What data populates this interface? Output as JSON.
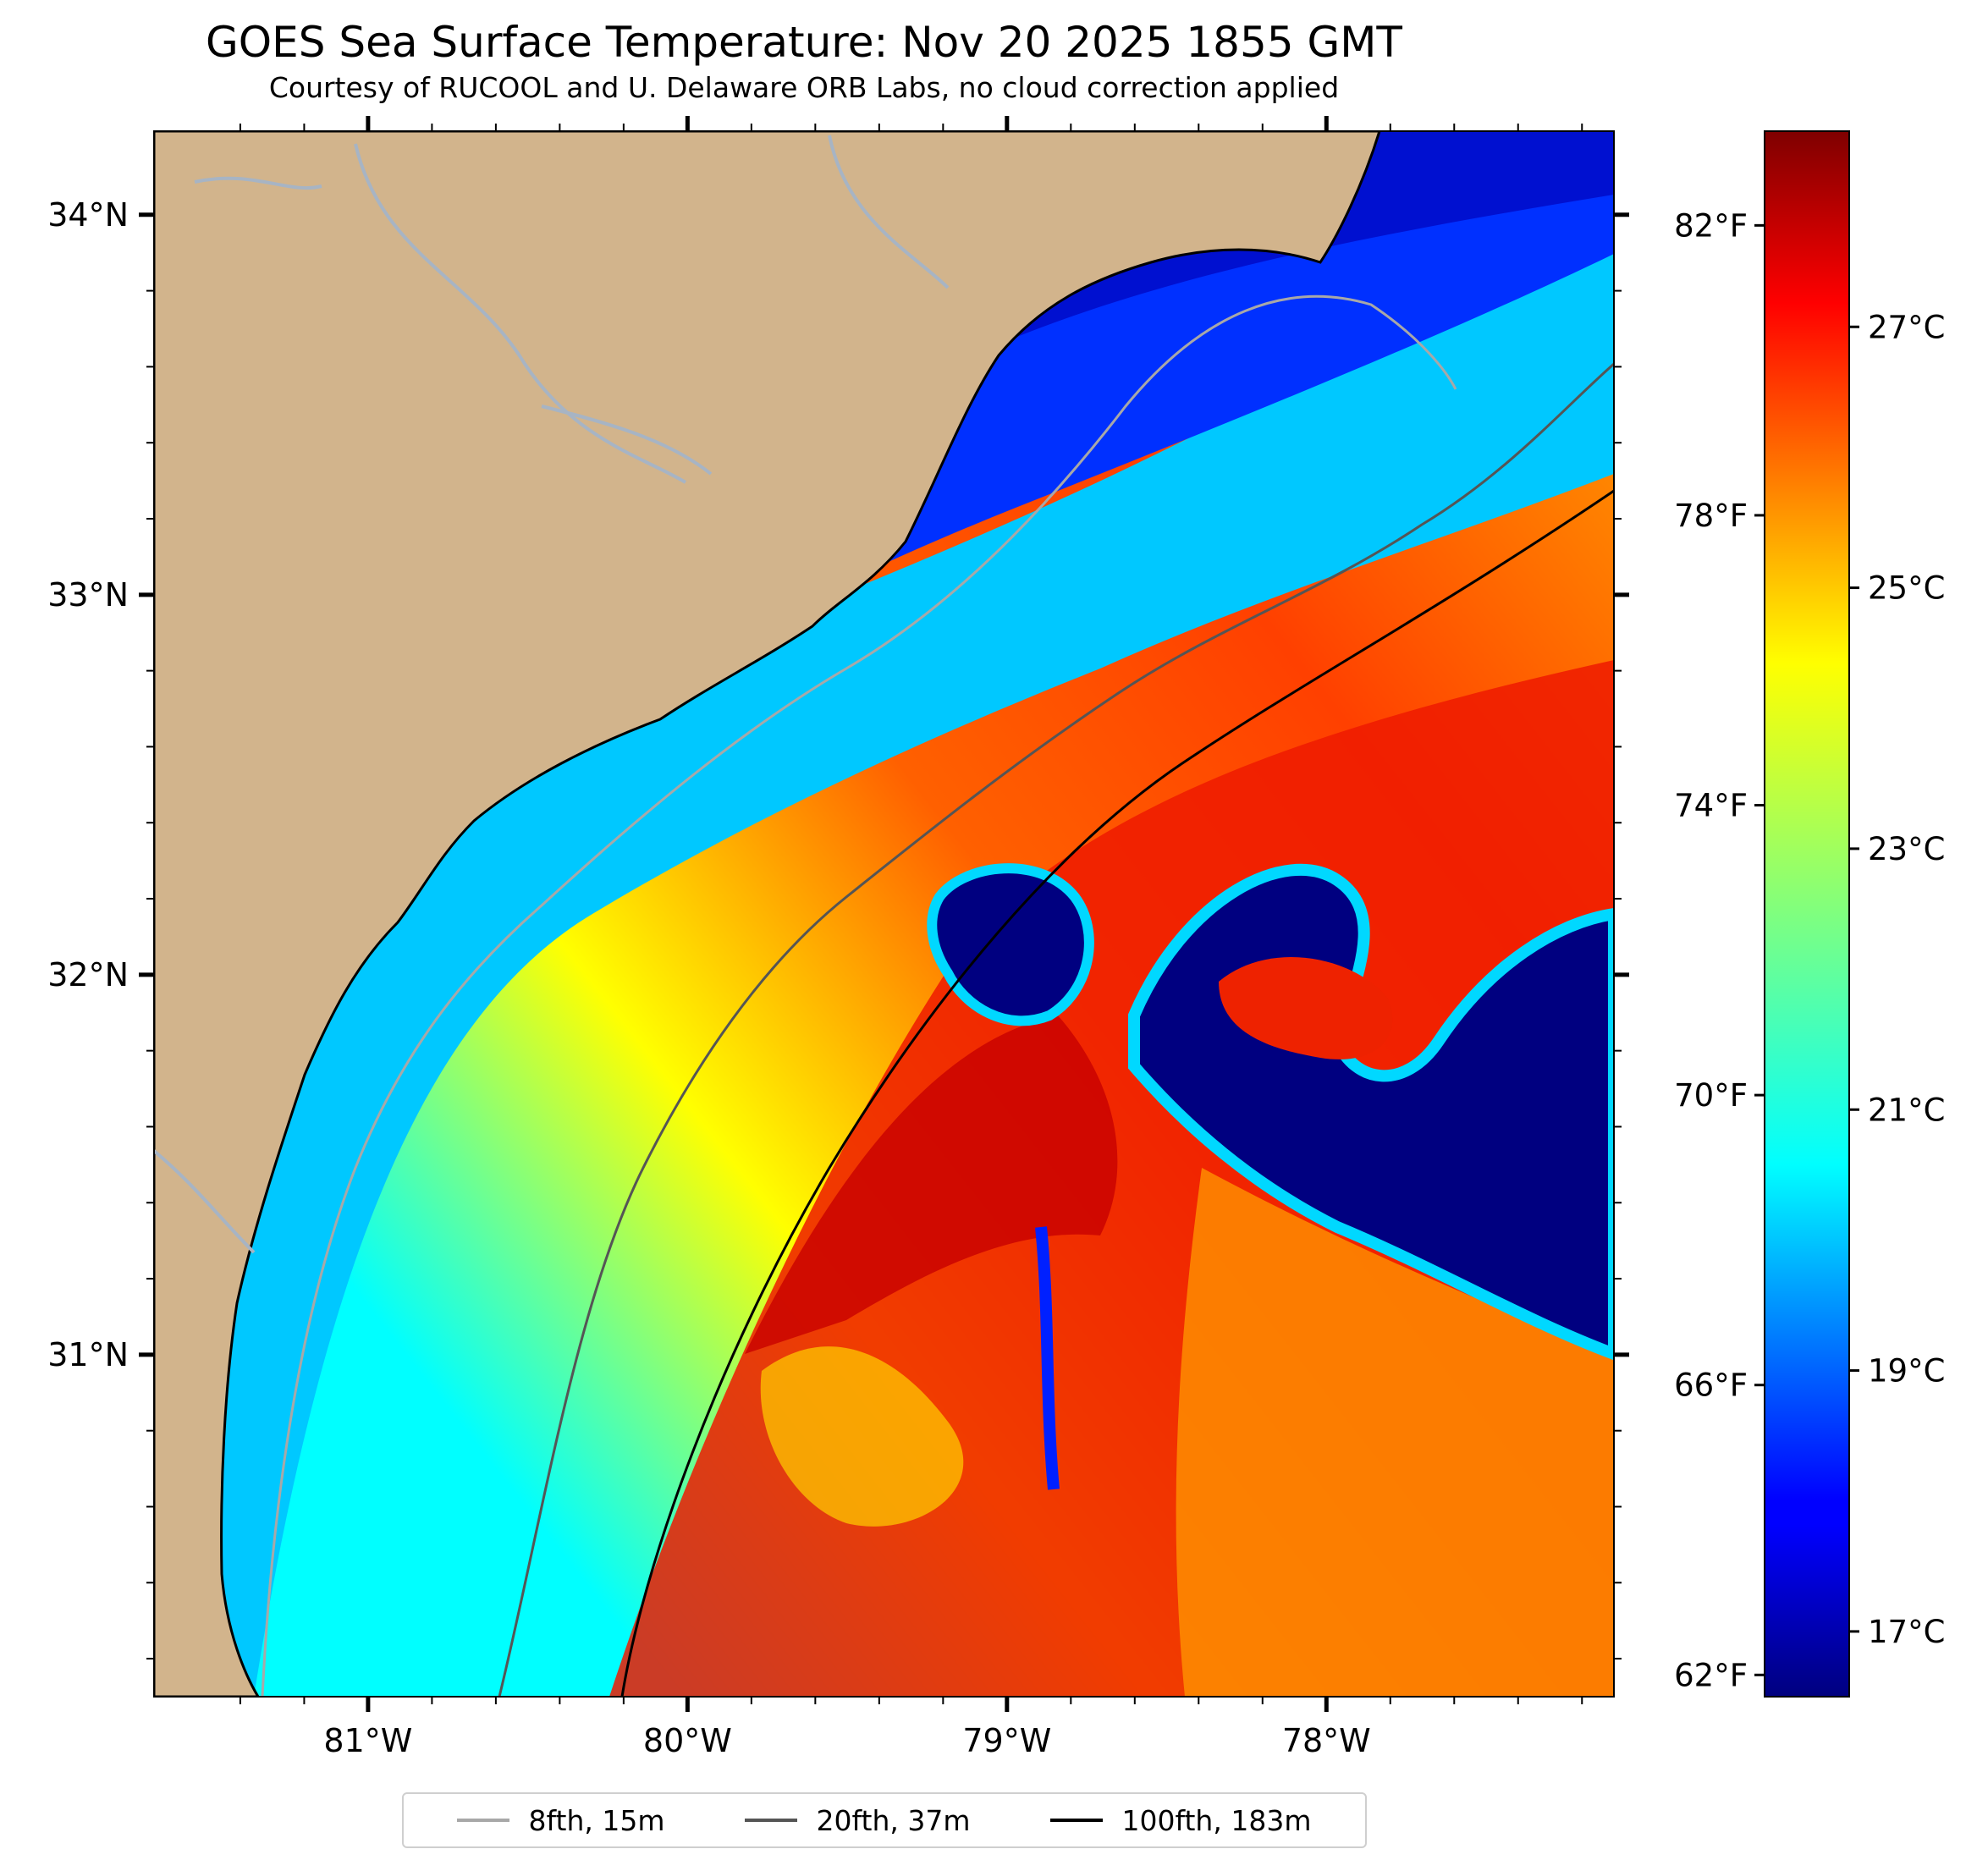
{
  "title": "GOES Sea Surface Temperature: Nov 20 2025 1855 GMT",
  "subtitle": "Courtesy of RUCOOL and U. Delaware ORB Labs, no cloud correction applied",
  "map": {
    "lon_range": [
      -81.67,
      -77.1
    ],
    "lat_range": [
      30.1,
      34.22
    ],
    "lon_ticks": [
      "81°W",
      "80°W",
      "79°W",
      "78°W"
    ],
    "lat_ticks": [
      "34°N",
      "33°N",
      "32°N",
      "31°N"
    ],
    "land_color": "#d2b48c",
    "river_color": "#a7b4c4"
  },
  "colorbar": {
    "colormap": "jet",
    "range_c": [
      16.5,
      28.5
    ],
    "celsius_ticks": [
      "17°C",
      "19°C",
      "21°C",
      "23°C",
      "25°C",
      "27°C"
    ],
    "fahrenheit_ticks": [
      "62°F",
      "66°F",
      "70°F",
      "74°F",
      "78°F",
      "82°F"
    ]
  },
  "legend": [
    {
      "label": "8fth, 15m",
      "color": "#a8a8a8"
    },
    {
      "label": "20fth, 37m",
      "color": "#555555"
    },
    {
      "label": "100fth, 183m",
      "color": "#000000"
    }
  ]
}
